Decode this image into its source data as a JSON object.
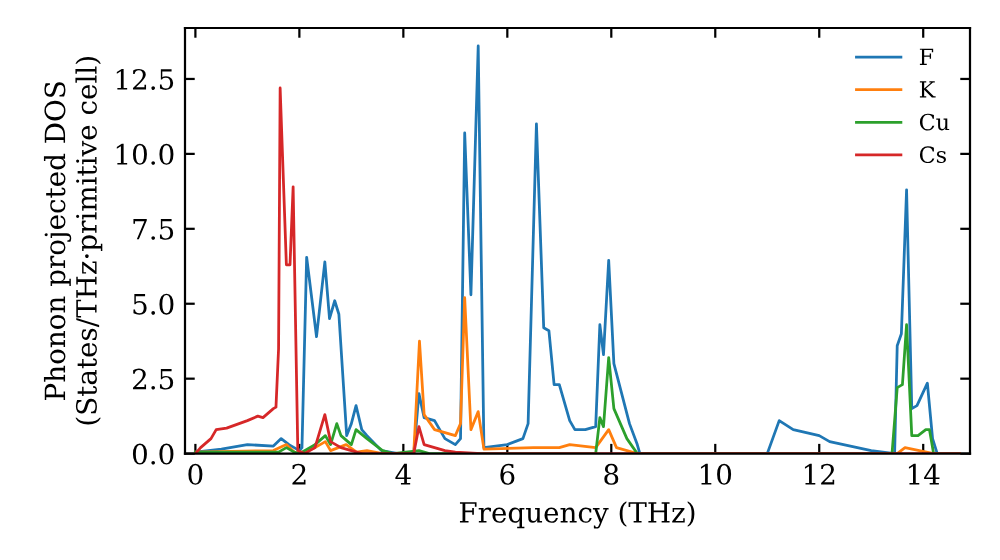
{
  "chart_data": {
    "type": "line",
    "xlabel": "Frequency (THz)",
    "ylabel": "Phonon projected DOS\n(States/THz·primitive cell)",
    "xlim": [
      -0.2,
      14.9
    ],
    "ylim": [
      0,
      14.2
    ],
    "xticks": [
      0,
      2,
      4,
      6,
      8,
      10,
      12,
      14
    ],
    "yticks": [
      {
        "value": 0,
        "label": "0.0"
      },
      2.5,
      {
        "value": 5,
        "label": "5.0"
      },
      7.5,
      {
        "value": 10,
        "label": "10.0"
      },
      12.5
    ],
    "legend": "top right",
    "grid": false,
    "series": [
      {
        "name": "F",
        "color": "#1f77b4",
        "x": [
          0,
          0.5,
          1.0,
          1.5,
          1.65,
          1.8,
          2.0,
          2.05,
          2.14,
          2.33,
          2.49,
          2.58,
          2.68,
          2.76,
          2.91,
          3.0,
          3.09,
          3.2,
          3.3,
          3.58,
          3.9,
          4.2,
          4.3,
          4.4,
          4.6,
          4.8,
          5.0,
          5.1,
          5.18,
          5.3,
          5.44,
          5.55,
          6.0,
          6.3,
          6.4,
          6.56,
          6.7,
          6.8,
          6.9,
          7.0,
          7.2,
          7.3,
          7.5,
          7.7,
          7.78,
          7.85,
          7.95,
          8.05,
          8.2,
          8.35,
          8.5,
          8.55,
          11.0,
          11.23,
          11.5,
          12.0,
          12.2,
          13.0,
          13.45,
          13.5,
          13.58,
          13.68,
          13.78,
          13.88,
          14.08,
          14.18,
          14.27,
          14.7
        ],
        "values": [
          0.05,
          0.15,
          0.3,
          0.25,
          0.5,
          0.3,
          0.1,
          0.2,
          6.55,
          3.9,
          6.4,
          4.5,
          5.1,
          4.65,
          0.6,
          1.0,
          1.6,
          0.8,
          0.6,
          0.1,
          0.0,
          0.0,
          2.0,
          1.2,
          1.1,
          0.5,
          0.3,
          0.5,
          10.7,
          5.3,
          13.6,
          0.2,
          0.3,
          0.5,
          1.0,
          11.0,
          4.2,
          4.1,
          2.3,
          2.3,
          1.1,
          0.8,
          0.8,
          0.9,
          4.3,
          3.3,
          6.45,
          3.0,
          2.0,
          1.0,
          0.3,
          0.0,
          0.0,
          1.1,
          0.8,
          0.6,
          0.4,
          0.1,
          0.0,
          3.6,
          4.0,
          8.8,
          1.5,
          1.6,
          2.35,
          0.5,
          0.0,
          0.0
        ]
      },
      {
        "name": "K",
        "color": "#ff7f0e",
        "x": [
          0,
          1.5,
          1.75,
          1.9,
          2.0,
          2.3,
          2.5,
          2.6,
          2.9,
          3.1,
          3.3,
          3.6,
          4.2,
          4.31,
          4.4,
          4.6,
          5.0,
          5.1,
          5.18,
          5.3,
          5.44,
          5.55,
          6.5,
          7.0,
          7.2,
          7.7,
          7.95,
          8.1,
          8.5,
          13.5,
          13.65,
          14.2,
          14.7
        ],
        "values": [
          0.05,
          0.1,
          0.3,
          0.05,
          0.0,
          0.2,
          0.4,
          0.1,
          0.3,
          0.05,
          0.1,
          0.0,
          0.0,
          3.75,
          1.3,
          0.8,
          0.6,
          1.0,
          5.2,
          0.8,
          1.4,
          0.15,
          0.2,
          0.2,
          0.3,
          0.2,
          0.8,
          0.2,
          0.0,
          0.0,
          0.2,
          0.0,
          0.0
        ]
      },
      {
        "name": "Cu",
        "color": "#2ca02c",
        "x": [
          0,
          1.6,
          1.75,
          1.9,
          2.0,
          2.3,
          2.5,
          2.6,
          2.72,
          2.8,
          3.0,
          3.09,
          3.3,
          3.6,
          3.8,
          4.3,
          4.5,
          7.7,
          7.78,
          7.85,
          7.95,
          8.05,
          8.3,
          8.5,
          13.4,
          13.5,
          13.6,
          13.68,
          13.78,
          13.9,
          14.05,
          14.12,
          14.2,
          14.7
        ],
        "values": [
          0.05,
          0.05,
          0.2,
          0.05,
          0.0,
          0.3,
          0.6,
          0.3,
          1.0,
          0.6,
          0.3,
          0.8,
          0.5,
          0.1,
          0.0,
          0.1,
          0.0,
          0.0,
          1.2,
          0.9,
          3.2,
          1.5,
          0.5,
          0.0,
          0.0,
          2.2,
          2.3,
          4.3,
          0.6,
          0.6,
          0.8,
          0.8,
          0.0,
          0.0
        ]
      },
      {
        "name": "Cs",
        "color": "#d62728",
        "x": [
          0,
          0.1,
          0.3,
          0.4,
          0.6,
          1.0,
          1.2,
          1.3,
          1.5,
          1.55,
          1.6,
          1.63,
          1.75,
          1.82,
          1.88,
          1.97,
          2.1,
          2.3,
          2.49,
          2.6,
          2.8,
          3.0,
          3.2,
          4.2,
          4.3,
          4.4,
          4.6,
          4.8,
          5.0,
          5.5,
          14.7
        ],
        "values": [
          0.0,
          0.2,
          0.5,
          0.8,
          0.85,
          1.1,
          1.25,
          1.2,
          1.5,
          1.55,
          3.5,
          12.2,
          6.3,
          6.3,
          8.9,
          0.1,
          0.0,
          0.2,
          1.3,
          0.4,
          0.2,
          0.1,
          0.0,
          0.0,
          0.9,
          0.3,
          0.2,
          0.1,
          0.05,
          0.0,
          0.0
        ]
      }
    ]
  }
}
